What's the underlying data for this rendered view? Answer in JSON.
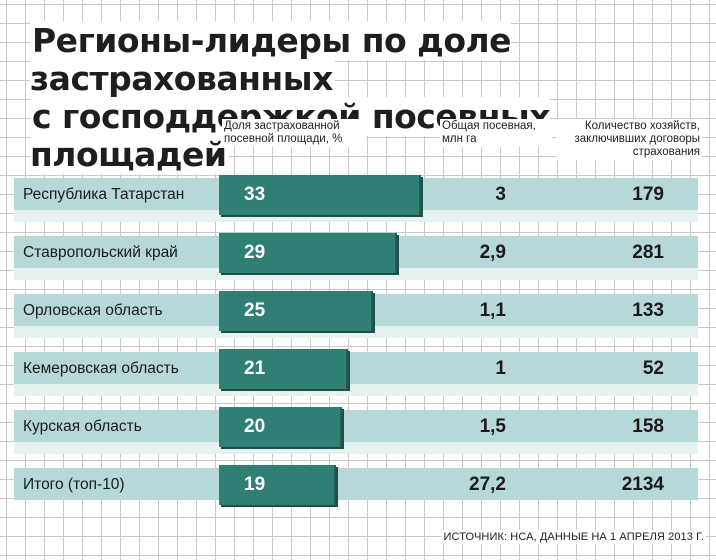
{
  "title_line1": "Регионы-лидеры по доле застрахованных",
  "title_line2": "с господдержкой посевных площадей",
  "headers": {
    "share": "Доля застрахованной посевной площади, %",
    "area": "Общая посевная, млн га",
    "farms": "Количество хозяйств, заключивших договоры страхования"
  },
  "chart_data": {
    "type": "bar",
    "title": "Регионы-лидеры по доле застрахованных с господдержкой посевных площадей",
    "categories": [
      "Республика Татарстан",
      "Ставропольский край",
      "Орловская область",
      "Кемеровская область",
      "Курская область",
      "Итого (топ-10)"
    ],
    "series": [
      {
        "name": "Доля застрахованной посевной площади, %",
        "values": [
          33,
          29,
          25,
          21,
          20,
          19
        ]
      },
      {
        "name": "Общая посевная, млн га",
        "values": [
          "3",
          "2,9",
          "1,1",
          "1",
          "1,5",
          "27,2"
        ]
      },
      {
        "name": "Количество хозяйств, заключивших договоры страхования",
        "values": [
          179,
          281,
          133,
          52,
          158,
          2134
        ]
      }
    ],
    "xlabel": "",
    "ylabel": "",
    "scale_max": 33
  },
  "source": "ИСТОЧНИК: НСА, ДАННЫЕ НА 1 АПРЕЛЯ 2013 Г."
}
